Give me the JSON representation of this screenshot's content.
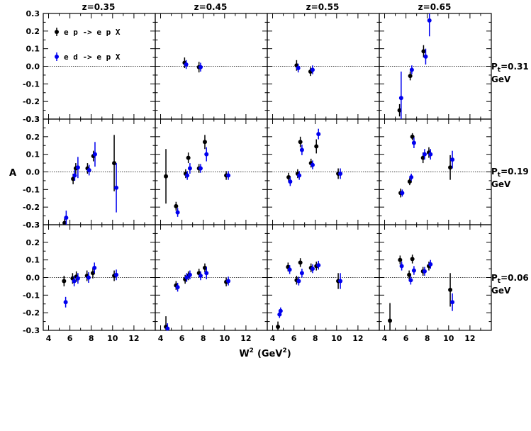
{
  "chart_data": {
    "type": "scatter",
    "xlabel": "W",
    "xlabel_sup": "2",
    "xlabel_unit": "(GeV",
    "xlabel_unit_sup": "2",
    "xlabel_unit_close": ")",
    "ylabel": "A",
    "xlim": [
      3.5,
      14
    ],
    "ylim": [
      -0.3,
      0.3
    ],
    "x_ticks": [
      "4",
      "6",
      "8",
      "10",
      "12"
    ],
    "x_tick_values": [
      4,
      6,
      8,
      10,
      12
    ],
    "y_ticks": [
      "0.3",
      "0.2",
      "0.1",
      "0.0",
      "-0.1",
      "-0.2",
      "-0.3"
    ],
    "y_tick_values": [
      0.3,
      0.2,
      0.1,
      0.0,
      -0.1,
      -0.2,
      -0.3
    ],
    "zero_line": true,
    "columns": [
      "z=0.35",
      "z=0.45",
      "z=0.55",
      "z=0.65"
    ],
    "rows": [
      {
        "prefix": "P",
        "sub": "t",
        "value": "=0.31",
        "unit": "GeV"
      },
      {
        "prefix": "P",
        "sub": "t",
        "value": "=0.19",
        "unit": "GeV"
      },
      {
        "prefix": "P",
        "sub": "t",
        "value": "=0.06",
        "unit": "GeV"
      }
    ],
    "legend": [
      {
        "text": "e p -> e p X",
        "color": "#000000"
      },
      {
        "text": "e d -> e p X",
        "color": "#0000ee"
      }
    ],
    "series_colors": {
      "ep": "#000000",
      "ed": "#0000ee"
    },
    "panels": [
      {
        "row": 0,
        "col": 0,
        "ep": [],
        "ed": []
      },
      {
        "row": 0,
        "col": 1,
        "ep": [
          [
            6.25,
            0.02,
            0.03
          ],
          [
            7.6,
            -0.005,
            0.03
          ]
        ],
        "ed": [
          [
            6.4,
            0.01,
            0.025
          ],
          [
            7.75,
            -0.005,
            0.025
          ]
        ]
      },
      {
        "row": 0,
        "col": 2,
        "ep": [
          [
            6.25,
            0.005,
            0.03
          ],
          [
            7.55,
            -0.03,
            0.025
          ]
        ],
        "ed": [
          [
            6.4,
            -0.01,
            0.025
          ],
          [
            7.75,
            -0.02,
            0.025
          ]
        ]
      },
      {
        "row": 0,
        "col": 3,
        "ep": [
          [
            5.4,
            -0.25,
            0.035
          ],
          [
            6.4,
            -0.055,
            0.025
          ],
          [
            7.65,
            0.085,
            0.035
          ]
        ],
        "ed": [
          [
            5.55,
            -0.18,
            0.15
          ],
          [
            6.55,
            -0.02,
            0.025
          ],
          [
            7.85,
            0.055,
            0.045
          ],
          [
            8.2,
            0.26,
            0.09
          ]
        ]
      },
      {
        "row": 1,
        "col": 0,
        "ep": [
          [
            5.5,
            -0.29,
            0.025
          ],
          [
            6.3,
            -0.04,
            0.03
          ],
          [
            6.55,
            0.02,
            0.03
          ],
          [
            7.65,
            0.02,
            0.03
          ],
          [
            8.2,
            0.09,
            0.03
          ],
          [
            10.15,
            0.05,
            0.16
          ]
        ],
        "ed": [
          [
            5.65,
            -0.26,
            0.04
          ],
          [
            6.45,
            -0.02,
            0.03
          ],
          [
            6.75,
            0.025,
            0.06
          ],
          [
            7.8,
            0.01,
            0.03
          ],
          [
            8.35,
            0.1,
            0.07
          ],
          [
            10.35,
            -0.09,
            0.14
          ]
        ]
      },
      {
        "row": 1,
        "col": 1,
        "ep": [
          [
            4.5,
            -0.025,
            0.155
          ],
          [
            5.45,
            -0.195,
            0.025
          ],
          [
            6.35,
            -0.01,
            0.025
          ],
          [
            6.6,
            0.08,
            0.03
          ],
          [
            7.6,
            0.02,
            0.025
          ],
          [
            8.15,
            0.17,
            0.04
          ],
          [
            10.15,
            -0.02,
            0.025
          ]
        ],
        "ed": [
          [
            5.6,
            -0.23,
            0.025
          ],
          [
            6.5,
            -0.02,
            0.025
          ],
          [
            6.75,
            0.02,
            0.03
          ],
          [
            7.75,
            0.02,
            0.025
          ],
          [
            8.3,
            0.1,
            0.04
          ],
          [
            10.35,
            -0.02,
            0.025
          ]
        ]
      },
      {
        "row": 1,
        "col": 2,
        "ep": [
          [
            5.5,
            -0.03,
            0.025
          ],
          [
            6.35,
            -0.01,
            0.025
          ],
          [
            6.6,
            0.17,
            0.03
          ],
          [
            7.6,
            0.05,
            0.025
          ],
          [
            8.1,
            0.145,
            0.04
          ],
          [
            10.15,
            -0.01,
            0.03
          ]
        ],
        "ed": [
          [
            5.65,
            -0.055,
            0.025
          ],
          [
            6.5,
            -0.02,
            0.025
          ],
          [
            6.75,
            0.125,
            0.03
          ],
          [
            7.75,
            0.04,
            0.025
          ],
          [
            8.3,
            0.215,
            0.03
          ],
          [
            10.35,
            -0.01,
            0.03
          ]
        ]
      },
      {
        "row": 1,
        "col": 3,
        "ep": [
          [
            5.5,
            -0.12,
            0.025
          ],
          [
            6.35,
            -0.055,
            0.02
          ],
          [
            6.6,
            0.2,
            0.02
          ],
          [
            7.6,
            0.08,
            0.03
          ],
          [
            8.15,
            0.11,
            0.03
          ],
          [
            10.15,
            0.025,
            0.07
          ]
        ],
        "ed": [
          [
            5.65,
            -0.12,
            0.02
          ],
          [
            6.5,
            -0.03,
            0.02
          ],
          [
            6.75,
            0.165,
            0.03
          ],
          [
            7.75,
            0.1,
            0.03
          ],
          [
            8.3,
            0.1,
            0.03
          ],
          [
            10.35,
            0.07,
            0.05
          ]
        ]
      },
      {
        "row": 2,
        "col": 0,
        "ep": [
          [
            5.45,
            -0.02,
            0.03
          ],
          [
            6.25,
            -0.005,
            0.03
          ],
          [
            6.6,
            0.005,
            0.03
          ],
          [
            7.6,
            0.01,
            0.03
          ],
          [
            8.15,
            0.025,
            0.03
          ],
          [
            10.15,
            0.01,
            0.03
          ]
        ],
        "ed": [
          [
            5.6,
            -0.14,
            0.03
          ],
          [
            6.4,
            -0.02,
            0.03
          ],
          [
            6.75,
            -0.005,
            0.03
          ],
          [
            7.75,
            0.0,
            0.03
          ],
          [
            8.3,
            0.055,
            0.03
          ],
          [
            10.35,
            0.015,
            0.03
          ]
        ]
      },
      {
        "row": 2,
        "col": 1,
        "ep": [
          [
            4.5,
            -0.28,
            0.06
          ],
          [
            5.45,
            -0.045,
            0.025
          ],
          [
            6.3,
            -0.01,
            0.025
          ],
          [
            6.6,
            0.01,
            0.025
          ],
          [
            7.6,
            0.025,
            0.025
          ],
          [
            8.15,
            0.055,
            0.025
          ],
          [
            10.15,
            -0.025,
            0.025
          ]
        ],
        "ed": [
          [
            4.65,
            -0.29,
            0.03
          ],
          [
            5.6,
            -0.055,
            0.025
          ],
          [
            6.45,
            0.0,
            0.025
          ],
          [
            6.75,
            0.015,
            0.025
          ],
          [
            7.75,
            0.01,
            0.025
          ],
          [
            8.3,
            0.025,
            0.035
          ],
          [
            10.35,
            -0.02,
            0.025
          ]
        ]
      },
      {
        "row": 2,
        "col": 2,
        "ep": [
          [
            4.5,
            -0.28,
            0.03
          ],
          [
            5.45,
            0.06,
            0.025
          ],
          [
            6.25,
            -0.015,
            0.025
          ],
          [
            6.6,
            0.085,
            0.025
          ],
          [
            7.6,
            0.055,
            0.025
          ],
          [
            8.1,
            0.065,
            0.025
          ],
          [
            10.15,
            -0.02,
            0.045
          ]
        ],
        "ed": [
          [
            4.65,
            -0.21,
            0.02
          ],
          [
            4.75,
            -0.19,
            0.02
          ],
          [
            5.6,
            0.045,
            0.025
          ],
          [
            6.45,
            -0.02,
            0.025
          ],
          [
            6.75,
            0.025,
            0.025
          ],
          [
            7.75,
            0.05,
            0.025
          ],
          [
            8.3,
            0.07,
            0.025
          ],
          [
            10.35,
            -0.02,
            0.045
          ]
        ]
      },
      {
        "row": 2,
        "col": 3,
        "ep": [
          [
            4.5,
            -0.245,
            0.1
          ],
          [
            5.45,
            0.1,
            0.025
          ],
          [
            6.3,
            0.015,
            0.025
          ],
          [
            6.6,
            0.105,
            0.025
          ],
          [
            7.6,
            0.035,
            0.025
          ],
          [
            8.15,
            0.065,
            0.025
          ],
          [
            10.15,
            -0.07,
            0.095
          ]
        ],
        "ed": [
          [
            5.6,
            0.065,
            0.025
          ],
          [
            6.45,
            -0.015,
            0.025
          ],
          [
            6.75,
            0.04,
            0.025
          ],
          [
            7.75,
            0.035,
            0.025
          ],
          [
            8.3,
            0.075,
            0.025
          ],
          [
            10.35,
            -0.14,
            0.05
          ]
        ]
      }
    ]
  }
}
